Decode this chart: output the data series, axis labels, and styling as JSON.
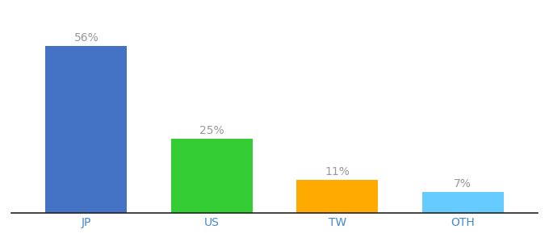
{
  "categories": [
    "JP",
    "US",
    "TW",
    "OTH"
  ],
  "values": [
    56,
    25,
    11,
    7
  ],
  "bar_colors": [
    "#4472c4",
    "#33cc33",
    "#ffaa00",
    "#66ccff"
  ],
  "labels": [
    "56%",
    "25%",
    "11%",
    "7%"
  ],
  "background_color": "#ffffff",
  "ylim": [
    0,
    65
  ],
  "label_fontsize": 10,
  "tick_fontsize": 10,
  "label_color": "#999999",
  "tick_color": "#4488cc",
  "bar_width": 0.65
}
